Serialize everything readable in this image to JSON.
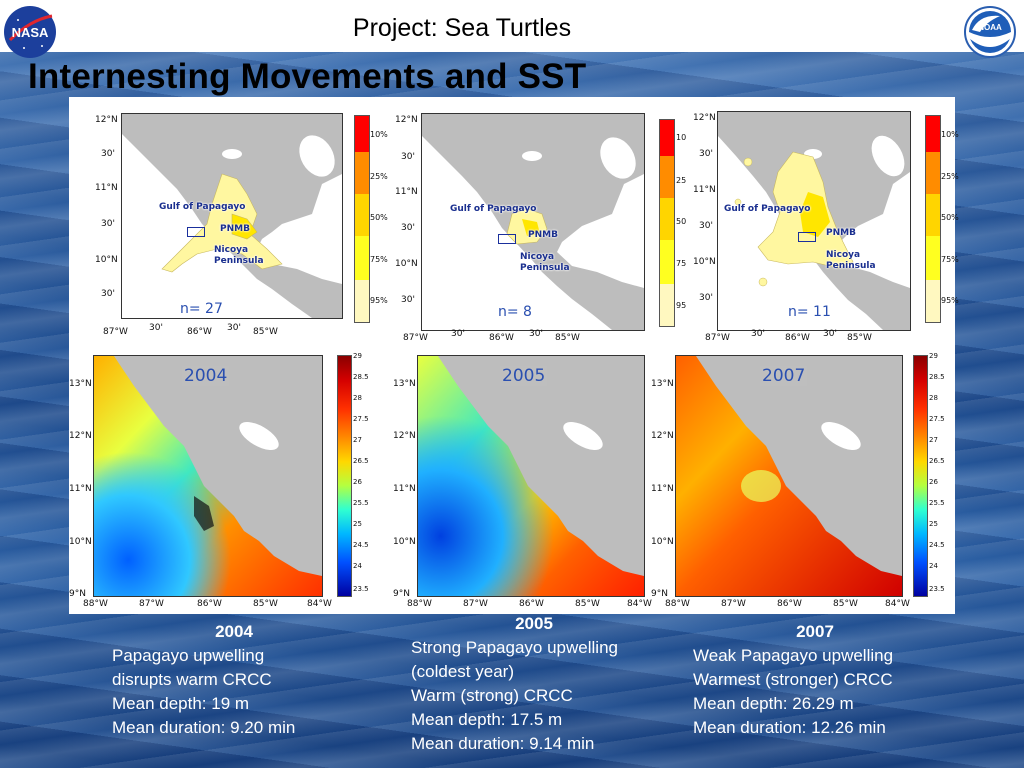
{
  "header": {
    "project_title": "Project: Sea Turtles",
    "main_title": "Internesting Movements and SST",
    "logos": [
      "nasa-logo",
      "noaa-logo"
    ]
  },
  "colors": {
    "land": "#bdbdbd",
    "occurrence_yellow": "#fff7a0",
    "label_blue": "#2a4fb0"
  },
  "top_maps": [
    {
      "n_label": "n= 27",
      "lat_ticks": [
        "12°N",
        "30'",
        "11°N",
        "30'",
        "10°N",
        "30'"
      ],
      "lon_ticks": [
        "87°W",
        "30'",
        "86°W",
        "30'",
        "85°W"
      ],
      "labels": {
        "gulf": "Gulf of Papagayo",
        "pnmb": "PNMB",
        "peninsula_line1": "Nicoya",
        "peninsula_line2": "Peninsula"
      },
      "scale_labels": [
        "10%",
        "25%",
        "50%",
        "75%",
        "95%"
      ]
    },
    {
      "n_label": "n= 8",
      "lat_ticks": [
        "12°N",
        "30'",
        "11°N",
        "30'",
        "10°N",
        "30'"
      ],
      "lon_ticks": [
        "87°W",
        "30'",
        "86°W",
        "30'",
        "85°W"
      ],
      "labels": {
        "gulf": "Gulf of Papagayo",
        "pnmb": "PNMB",
        "peninsula_line1": "Nicoya",
        "peninsula_line2": "Peninsula"
      },
      "scale_labels": []
    },
    {
      "n_label": "n= 11",
      "lat_ticks": [
        "12°N",
        "30'",
        "11°N",
        "30'",
        "10°N",
        "30'"
      ],
      "lon_ticks": [
        "87°W",
        "30'",
        "86°W",
        "30'",
        "85°W"
      ],
      "labels": {
        "gulf": "Gulf of Papagayo",
        "pnmb": "PNMB",
        "peninsula_line1": "Nicoya",
        "peninsula_line2": "Peninsula"
      },
      "scale_labels": [
        "10%",
        "25%",
        "50%",
        "75%",
        "95%"
      ]
    }
  ],
  "middle_scale_labels": [
    "10",
    "25",
    "50",
    "75",
    "95"
  ],
  "sst_maps": [
    {
      "year": "2004"
    },
    {
      "year": "2005"
    },
    {
      "year": "2007"
    }
  ],
  "sst_lat_ticks": [
    "13°N",
    "12°N",
    "11°N",
    "10°N",
    "9°N"
  ],
  "sst_lon_ticks": [
    "88°W",
    "87°W",
    "86°W",
    "85°W",
    "84°W"
  ],
  "sst_scale_labels": [
    "29",
    "28.5",
    "28",
    "27.5",
    "27",
    "26.5",
    "26",
    "25.5",
    "25",
    "24.5",
    "24",
    "23.5"
  ],
  "captions": [
    {
      "year": "2004",
      "lines": [
        "Papagayo upwelling",
        "disrupts warm CRCC",
        "Mean depth: 19 m",
        "Mean duration: 9.20 min"
      ]
    },
    {
      "year": "2005",
      "lines": [
        "Strong Papagayo upwelling",
        "(coldest year)",
        "Warm (strong) CRCC",
        "Mean depth: 17.5 m",
        "Mean duration: 9.14 min"
      ]
    },
    {
      "year": "2007",
      "lines": [
        "Weak Papagayo upwelling",
        "Warmest (stronger) CRCC",
        "Mean depth: 26.29 m",
        "Mean duration: 12.26 min"
      ]
    }
  ]
}
